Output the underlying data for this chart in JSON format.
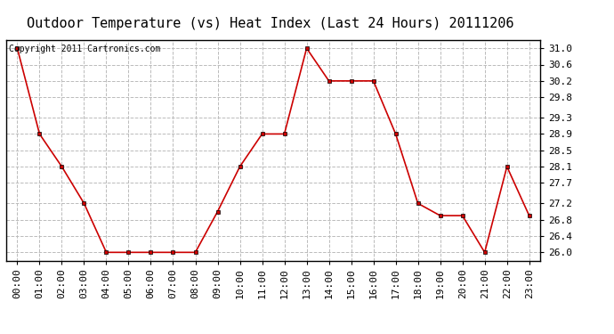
{
  "title": "Outdoor Temperature (vs) Heat Index (Last 24 Hours) 20111206",
  "copyright_text": "Copyright 2011 Cartronics.com",
  "x_labels": [
    "00:00",
    "01:00",
    "02:00",
    "03:00",
    "04:00",
    "05:00",
    "06:00",
    "07:00",
    "08:00",
    "09:00",
    "10:00",
    "11:00",
    "12:00",
    "13:00",
    "14:00",
    "15:00",
    "16:00",
    "17:00",
    "18:00",
    "19:00",
    "20:00",
    "21:00",
    "22:00",
    "23:00"
  ],
  "y_values": [
    31.0,
    28.9,
    28.1,
    27.2,
    26.0,
    26.0,
    26.0,
    26.0,
    26.0,
    27.0,
    28.1,
    28.9,
    28.9,
    31.0,
    30.2,
    30.2,
    30.2,
    28.9,
    27.2,
    26.9,
    26.9,
    26.0,
    28.1,
    26.9
  ],
  "y_ticks": [
    26.0,
    26.4,
    26.8,
    27.2,
    27.7,
    28.1,
    28.5,
    28.9,
    29.3,
    29.8,
    30.2,
    30.6,
    31.0
  ],
  "ylim": [
    25.8,
    31.2
  ],
  "line_color": "#cc0000",
  "marker": "s",
  "marker_size": 3,
  "marker_color": "#cc0000",
  "bg_color": "#ffffff",
  "plot_bg_color": "#ffffff",
  "grid_color": "#bbbbbb",
  "grid_style": "--",
  "title_fontsize": 11,
  "tick_fontsize": 8,
  "copyright_fontsize": 7
}
